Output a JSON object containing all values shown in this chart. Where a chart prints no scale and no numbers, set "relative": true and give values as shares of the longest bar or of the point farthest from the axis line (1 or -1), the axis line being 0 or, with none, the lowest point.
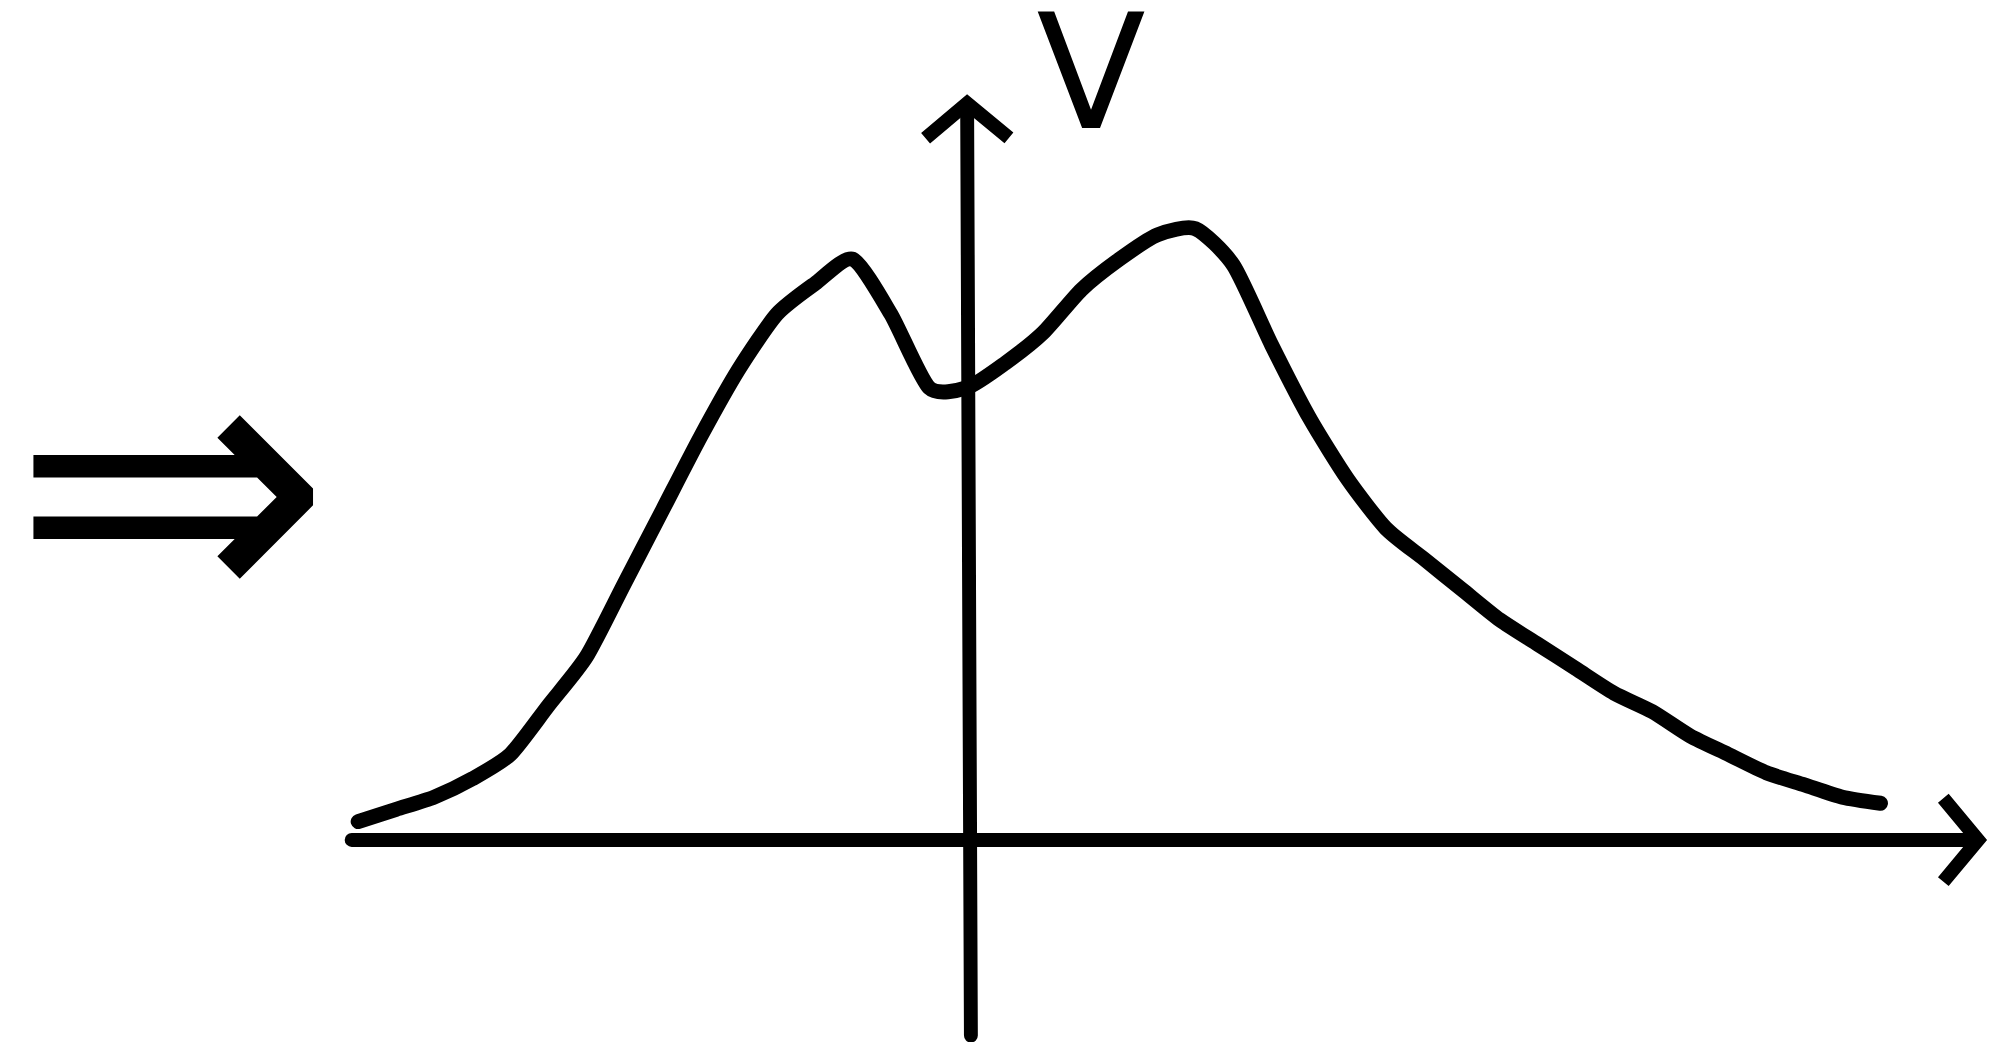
{
  "chart_data": {
    "type": "line",
    "relative": true,
    "ylabel": "V",
    "annotations": [
      "⇒"
    ],
    "categories": [
      null,
      null,
      null,
      null,
      null,
      null,
      null,
      null,
      null,
      null,
      null,
      null,
      null,
      null,
      null,
      null,
      null,
      null,
      null,
      null,
      null,
      null,
      null,
      null,
      null,
      null,
      null,
      null,
      null,
      null,
      null,
      null,
      null,
      null,
      null,
      null,
      null,
      null,
      null,
      null,
      null
    ],
    "series": [
      {
        "color": "#000000",
        "values": [
          0.03,
          0.05,
          0.07,
          0.1,
          0.14,
          0.22,
          0.3,
          0.42,
          0.54,
          0.66,
          0.77,
          0.86,
          0.91,
          0.95,
          0.86,
          0.74,
          0.74,
          0.78,
          0.83,
          0.9,
          0.95,
          0.99,
          1,
          0.94,
          0.81,
          0.69,
          0.59,
          0.51,
          0.46,
          0.41,
          0.36,
          0.32,
          0.28,
          0.24,
          0.21,
          0.17,
          0.14,
          0.11,
          0.09,
          0.07,
          0.06
        ]
      }
    ]
  }
}
